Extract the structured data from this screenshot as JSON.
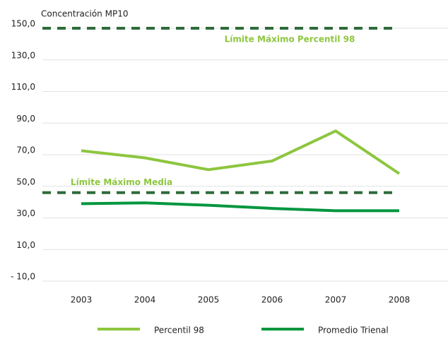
{
  "chart_data": {
    "type": "line",
    "y_axis_label": "Concentración MP10",
    "categories": [
      "2003",
      "2004",
      "2005",
      "2006",
      "2007",
      "2008"
    ],
    "series": [
      {
        "name": "Percentil 98",
        "color": "#8dc63f",
        "values": [
          72.5,
          68,
          60.5,
          66,
          85,
          58
        ]
      },
      {
        "name": "Promedio Trienal",
        "color": "#00963f",
        "values": [
          39,
          39.5,
          38,
          36,
          34.5,
          34.5
        ]
      }
    ],
    "reference_lines": [
      {
        "value": 150,
        "label": "Límite Máximo Percentil 98",
        "color": "#2e6b3a",
        "label_color": "#8dc63f"
      },
      {
        "value": 46,
        "label": "Límite Máximo Media",
        "color": "#2e6b3a",
        "label_color": "#8dc63f"
      }
    ],
    "ylim": [
      -10,
      150
    ],
    "yticks": [
      {
        "value": -10,
        "label": "- 10,0"
      },
      {
        "value": 10,
        "label": "10,0"
      },
      {
        "value": 30,
        "label": "30,0"
      },
      {
        "value": 50,
        "label": "50,0"
      },
      {
        "value": 70,
        "label": "70,0"
      },
      {
        "value": 90,
        "label": "90,0"
      },
      {
        "value": 110,
        "label": "110,0"
      },
      {
        "value": 130,
        "label": "130,0"
      },
      {
        "value": 150,
        "label": "150,0"
      }
    ],
    "grid": true
  }
}
